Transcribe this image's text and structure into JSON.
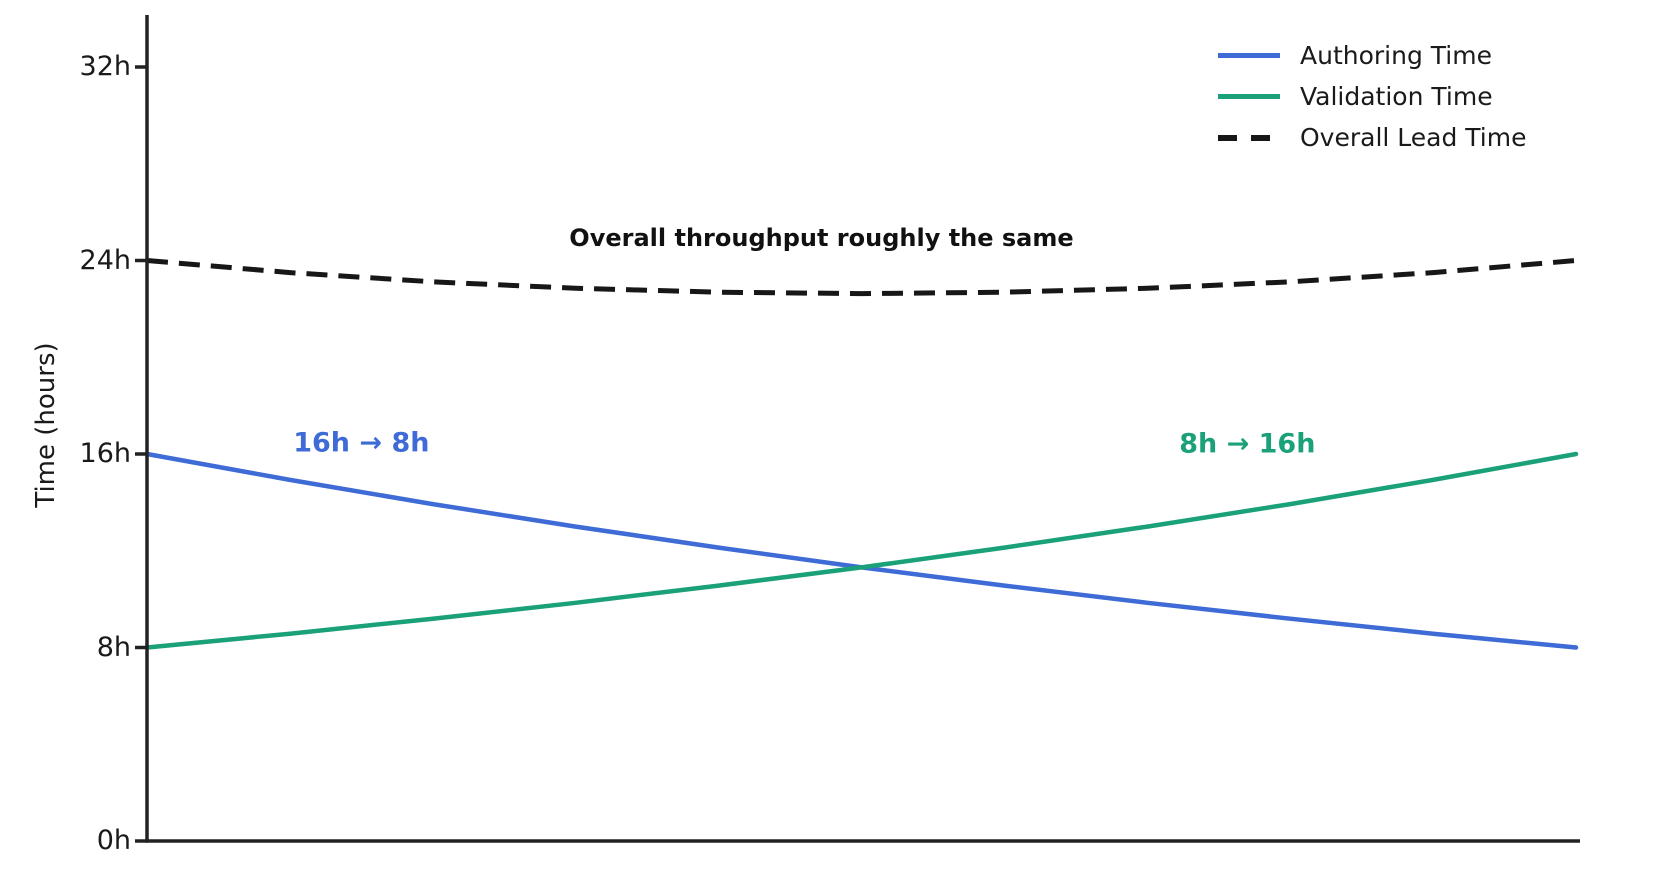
{
  "chart_data": {
    "type": "line",
    "title": "",
    "xlabel": "",
    "ylabel": "Time (hours)",
    "grid": false,
    "legend_position": "upper right",
    "xlim": [
      0,
      1
    ],
    "ylim": [
      0,
      34.15
    ],
    "x": [
      0,
      0.1,
      0.2,
      0.3,
      0.4,
      0.5,
      0.6,
      0.7,
      0.8,
      0.9,
      1.0
    ],
    "series": [
      {
        "name": "Authoring Time",
        "color": "#3e6bd6",
        "style": "solid",
        "values": [
          16,
          14.93,
          13.93,
          13.0,
          12.13,
          11.31,
          10.56,
          9.85,
          9.19,
          8.57,
          8
        ]
      },
      {
        "name": "Validation Time",
        "color": "#1aa179",
        "style": "solid",
        "values": [
          8,
          8.57,
          9.19,
          9.85,
          10.56,
          11.31,
          12.13,
          13.0,
          13.93,
          14.93,
          16
        ]
      },
      {
        "name": "Overall Lead Time",
        "color": "#171717",
        "style": "dashed",
        "values": [
          24,
          23.5,
          23.12,
          22.85,
          22.69,
          22.63,
          22.69,
          22.85,
          23.12,
          23.5,
          24
        ]
      }
    ],
    "yticks": [
      {
        "value": 0,
        "label": "0h"
      },
      {
        "value": 8,
        "label": "8h"
      },
      {
        "value": 16,
        "label": "16h"
      },
      {
        "value": 24,
        "label": "24h"
      },
      {
        "value": 32,
        "label": "32h"
      }
    ],
    "annotations": [
      {
        "id": "authoring-change",
        "text": "16h → 8h",
        "color": "#3e6bd6",
        "x": 0.15,
        "y": 16.45,
        "kind": "side"
      },
      {
        "id": "validation-change",
        "text": "8h → 16h",
        "color": "#1aa179",
        "x": 0.77,
        "y": 16.4,
        "kind": "side"
      },
      {
        "id": "throughput-note",
        "text": "Overall throughput roughly the same",
        "color": "#111111",
        "x": 0.472,
        "y": 24.93,
        "kind": "headline"
      }
    ],
    "axis_color": "#222222"
  }
}
